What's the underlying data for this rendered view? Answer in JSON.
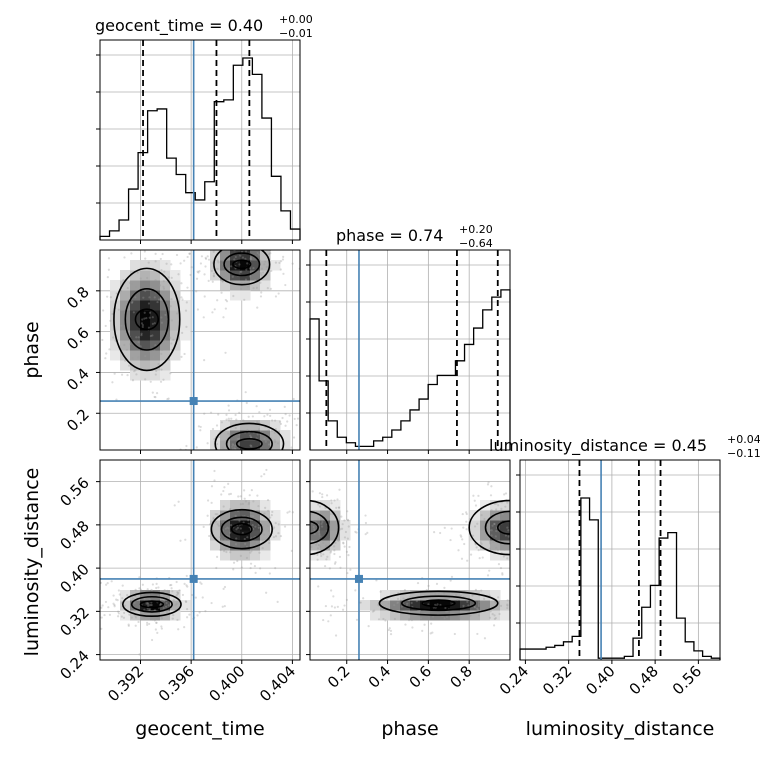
{
  "chart_data": {
    "type": "corner",
    "parameters": [
      "geocent_time",
      "phase",
      "luminosity_distance"
    ],
    "truth": {
      "geocent_time": 0.3962,
      "phase": 0.26,
      "luminosity_distance": 0.38
    },
    "ranges": {
      "geocent_time": [
        0.3888,
        0.4046
      ],
      "phase": [
        0.02,
        1.0
      ],
      "luminosity_distance": [
        0.23,
        0.6
      ]
    },
    "ticks": {
      "geocent_time": [
        "0.392",
        "0.396",
        "0.400",
        "0.404"
      ],
      "phase": [
        "0.2",
        "0.4",
        "0.6",
        "0.8"
      ],
      "luminosity_distance": [
        "0.24",
        "0.32",
        "0.40",
        "0.48",
        "0.56"
      ]
    },
    "titles": [
      {
        "label": "geocent_time = 0.40",
        "sup": "+0.00",
        "sub": "−0.01"
      },
      {
        "label": "phase = 0.74",
        "sup": "+0.20",
        "sub": "−0.64"
      },
      {
        "label": "luminosity_distance = 0.45",
        "sup": "+0.04",
        "sub": "−0.11"
      }
    ],
    "quantiles": {
      "geocent_time": [
        0.3922,
        0.398,
        0.4006
      ],
      "phase": [
        0.1,
        0.74,
        0.94
      ],
      "luminosity_distance": [
        0.34,
        0.45,
        0.49
      ]
    },
    "histograms": {
      "geocent_time": [
        0.02,
        0.05,
        0.11,
        0.28,
        0.48,
        0.71,
        0.72,
        0.45,
        0.36,
        0.26,
        0.22,
        0.32,
        0.76,
        0.77,
        0.96,
        1.0,
        0.91,
        0.67,
        0.35,
        0.16,
        0.06
      ],
      "phase": [
        0.72,
        0.38,
        0.16,
        0.07,
        0.04,
        0.02,
        0.02,
        0.05,
        0.07,
        0.11,
        0.16,
        0.22,
        0.28,
        0.36,
        0.41,
        0.41,
        0.49,
        0.58,
        0.67,
        0.77,
        0.84,
        0.88
      ],
      "luminosity_distance": [
        0.06,
        0.06,
        0.06,
        0.07,
        0.08,
        0.1,
        0.13,
        0.89,
        0.77,
        0.01,
        0.01,
        0.01,
        0.02,
        0.12,
        0.29,
        0.41,
        0.67,
        0.7,
        0.23,
        0.1,
        0.05,
        0.02,
        0.01
      ]
    },
    "xlabels": [
      "geocent_time",
      "phase",
      "luminosity_distance"
    ],
    "ylabels": [
      "phase",
      "luminosity_distance"
    ]
  }
}
